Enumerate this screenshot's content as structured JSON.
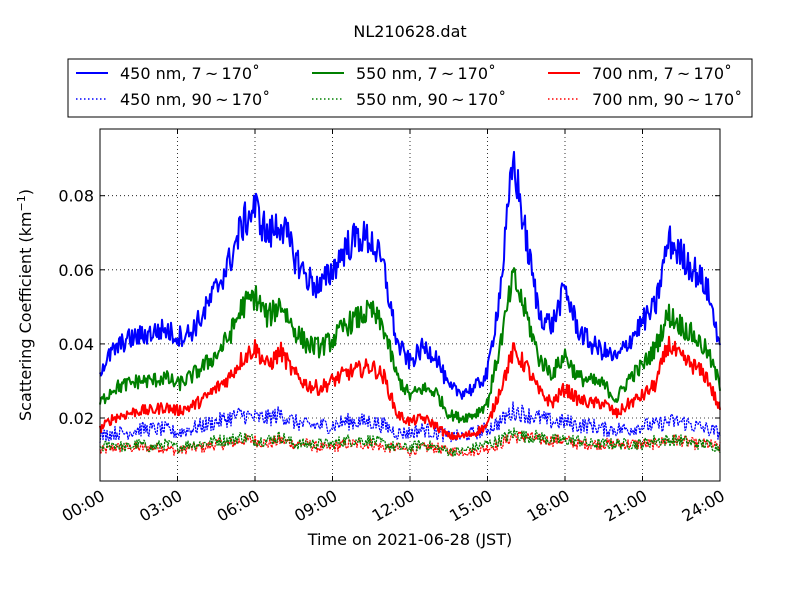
{
  "chart_data": {
    "type": "line",
    "title": "NL210628.dat",
    "xlabel": "Time on 2021-06-28 (JST)",
    "ylabel": "Scattering Coefficient (km",
    "ylabel_sup": "−1",
    "ylabel_close": ")",
    "xlim": [
      0,
      24
    ],
    "ylim": [
      0.003,
      0.098
    ],
    "x_ticks": [
      0,
      3,
      6,
      9,
      12,
      15,
      18,
      21,
      24
    ],
    "x_tick_labels": [
      "00:00",
      "03:00",
      "06:00",
      "09:00",
      "12:00",
      "15:00",
      "18:00",
      "21:00",
      "24:00"
    ],
    "y_ticks": [
      0.02,
      0.04,
      0.06,
      0.08
    ],
    "y_tick_labels": [
      "0.02",
      "0.04",
      "0.06",
      "0.08"
    ],
    "grid": true,
    "legend_position": "top",
    "x_hours": [
      0,
      0.5,
      1,
      1.5,
      2,
      2.5,
      3,
      3.5,
      4,
      4.5,
      5,
      5.5,
      6,
      6.5,
      7,
      7.5,
      8,
      8.5,
      9,
      9.5,
      10,
      10.5,
      11,
      11.5,
      12,
      12.5,
      13,
      13.5,
      14,
      14.5,
      15,
      15.5,
      16,
      16.5,
      17,
      17.5,
      18,
      18.5,
      19,
      19.5,
      20,
      20.5,
      21,
      21.5,
      22,
      22.5,
      23,
      23.5,
      24
    ],
    "series": [
      {
        "name": "450 nm, 7 ~ 170˚",
        "color": "#0000ff",
        "style": "solid",
        "values": [
          0.033,
          0.038,
          0.041,
          0.042,
          0.043,
          0.044,
          0.042,
          0.043,
          0.048,
          0.055,
          0.062,
          0.072,
          0.077,
          0.069,
          0.073,
          0.064,
          0.058,
          0.055,
          0.06,
          0.066,
          0.069,
          0.068,
          0.06,
          0.04,
          0.035,
          0.039,
          0.037,
          0.028,
          0.027,
          0.028,
          0.032,
          0.055,
          0.09,
          0.068,
          0.048,
          0.045,
          0.055,
          0.044,
          0.04,
          0.038,
          0.036,
          0.041,
          0.046,
          0.05,
          0.068,
          0.064,
          0.06,
          0.055,
          0.04
        ]
      },
      {
        "name": "450 nm, 90 ~ 170˚",
        "color": "#0000ff",
        "style": "dotted",
        "values": [
          0.015,
          0.016,
          0.016,
          0.017,
          0.017,
          0.017,
          0.016,
          0.017,
          0.018,
          0.019,
          0.02,
          0.021,
          0.02,
          0.02,
          0.021,
          0.019,
          0.018,
          0.018,
          0.018,
          0.019,
          0.019,
          0.019,
          0.018,
          0.016,
          0.016,
          0.017,
          0.016,
          0.015,
          0.015,
          0.016,
          0.017,
          0.019,
          0.022,
          0.021,
          0.02,
          0.019,
          0.019,
          0.018,
          0.018,
          0.017,
          0.017,
          0.017,
          0.018,
          0.018,
          0.019,
          0.019,
          0.018,
          0.017,
          0.016
        ]
      },
      {
        "name": "550 nm, 7 ~ 170˚",
        "color": "#008000",
        "style": "solid",
        "values": [
          0.024,
          0.028,
          0.029,
          0.03,
          0.03,
          0.031,
          0.029,
          0.031,
          0.034,
          0.037,
          0.042,
          0.05,
          0.053,
          0.047,
          0.051,
          0.044,
          0.04,
          0.039,
          0.041,
          0.045,
          0.047,
          0.049,
          0.044,
          0.031,
          0.026,
          0.028,
          0.027,
          0.021,
          0.02,
          0.021,
          0.024,
          0.04,
          0.058,
          0.048,
          0.036,
          0.032,
          0.037,
          0.031,
          0.03,
          0.029,
          0.025,
          0.031,
          0.034,
          0.039,
          0.048,
          0.045,
          0.042,
          0.038,
          0.029
        ]
      },
      {
        "name": "550 nm, 90 ~ 170˚",
        "color": "#008000",
        "style": "dotted",
        "values": [
          0.012,
          0.013,
          0.012,
          0.013,
          0.012,
          0.013,
          0.012,
          0.013,
          0.013,
          0.014,
          0.014,
          0.015,
          0.014,
          0.014,
          0.015,
          0.013,
          0.013,
          0.013,
          0.013,
          0.014,
          0.014,
          0.014,
          0.013,
          0.012,
          0.012,
          0.013,
          0.012,
          0.011,
          0.011,
          0.012,
          0.013,
          0.014,
          0.016,
          0.015,
          0.015,
          0.014,
          0.014,
          0.014,
          0.013,
          0.013,
          0.013,
          0.013,
          0.013,
          0.014,
          0.014,
          0.014,
          0.013,
          0.013,
          0.012
        ]
      },
      {
        "name": "700 nm, 7 ~ 170˚",
        "color": "#ff0000",
        "style": "solid",
        "values": [
          0.017,
          0.02,
          0.021,
          0.022,
          0.022,
          0.023,
          0.022,
          0.023,
          0.025,
          0.028,
          0.031,
          0.036,
          0.039,
          0.034,
          0.038,
          0.032,
          0.029,
          0.028,
          0.03,
          0.032,
          0.033,
          0.034,
          0.031,
          0.021,
          0.019,
          0.02,
          0.018,
          0.015,
          0.015,
          0.016,
          0.018,
          0.028,
          0.038,
          0.034,
          0.027,
          0.024,
          0.028,
          0.025,
          0.024,
          0.024,
          0.021,
          0.024,
          0.026,
          0.029,
          0.04,
          0.036,
          0.034,
          0.031,
          0.022
        ]
      },
      {
        "name": "700 nm, 90 ~ 170˚",
        "color": "#ff0000",
        "style": "dotted",
        "values": [
          0.011,
          0.012,
          0.012,
          0.012,
          0.012,
          0.012,
          0.011,
          0.012,
          0.012,
          0.013,
          0.013,
          0.014,
          0.014,
          0.013,
          0.014,
          0.013,
          0.013,
          0.012,
          0.012,
          0.013,
          0.013,
          0.013,
          0.012,
          0.012,
          0.011,
          0.012,
          0.012,
          0.011,
          0.011,
          0.011,
          0.012,
          0.013,
          0.015,
          0.015,
          0.014,
          0.014,
          0.014,
          0.013,
          0.013,
          0.013,
          0.013,
          0.013,
          0.013,
          0.013,
          0.014,
          0.014,
          0.013,
          0.013,
          0.012
        ]
      }
    ]
  }
}
